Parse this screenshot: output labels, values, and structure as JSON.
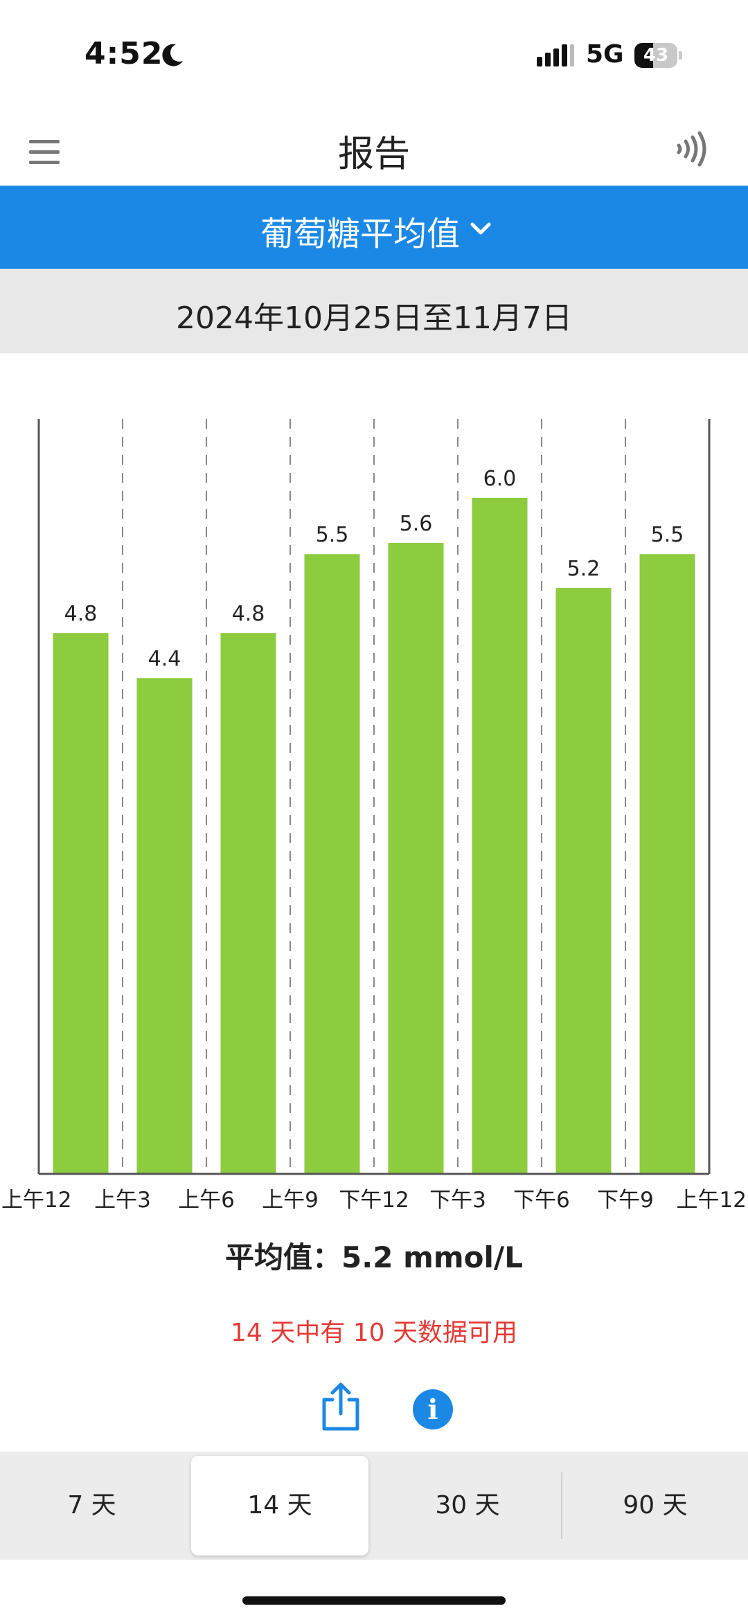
{
  "status_bar": {
    "time": "4:52",
    "network": "5G",
    "battery": "43",
    "battery_fraction": 0.43
  },
  "header": {
    "title": "报告"
  },
  "metric_selector": {
    "label": "葡萄糖平均值"
  },
  "date_range": "2024年10月25日至11月7日",
  "chart_data": {
    "type": "bar",
    "categories": [
      "上午12",
      "上午3",
      "上午6",
      "上午9",
      "下午12",
      "下午3",
      "下午6",
      "下午9"
    ],
    "x_ticks": [
      "上午12",
      "上午3",
      "上午6",
      "上午9",
      "下午12",
      "下午3",
      "下午6",
      "下午9",
      "上午12"
    ],
    "values": [
      4.8,
      4.4,
      4.8,
      5.5,
      5.6,
      6.0,
      5.2,
      5.5
    ],
    "value_labels": [
      "4.8",
      "4.4",
      "4.8",
      "5.5",
      "5.6",
      "6.0",
      "5.2",
      "5.5"
    ],
    "ylim": [
      0,
      6.7
    ],
    "bar_color": "#8dcb3f",
    "grid": "vertical-dashed"
  },
  "summary": {
    "average": "平均值：5.2 mmol/L",
    "availability": "14 天中有 10 天数据可用"
  },
  "period_tabs": [
    {
      "label": "7 天",
      "active": false
    },
    {
      "label": "14 天",
      "active": true
    },
    {
      "label": "30 天",
      "active": false
    },
    {
      "label": "90 天",
      "active": false
    }
  ],
  "colors": {
    "accent": "#1c88e5",
    "alert": "#e53935",
    "bar": "#8dcb3f"
  }
}
